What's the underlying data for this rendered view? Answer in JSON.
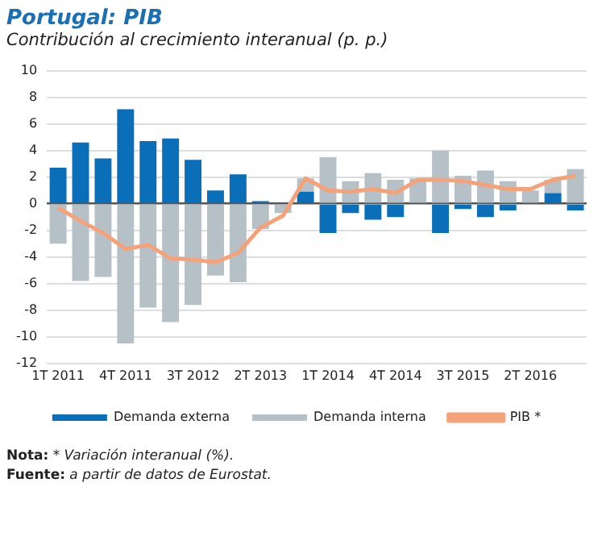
{
  "chart_data": {
    "type": "bar",
    "title": "Portugal: PIB",
    "subtitle": "Contribución al crecimiento interanual (p. p.)",
    "categories": [
      "1T 2011",
      null,
      null,
      "4T 2011",
      null,
      null,
      "3T 2012",
      null,
      null,
      "2T 2013",
      null,
      null,
      "1T 2014",
      null,
      null,
      "4T 2014",
      null,
      null,
      "3T 2015",
      null,
      null,
      "2T 2016",
      null,
      null
    ],
    "stacked": true,
    "series": [
      {
        "name": "Demanda externa",
        "color": "#0b6eb8",
        "values": [
          2.7,
          4.6,
          3.4,
          7.1,
          4.7,
          4.9,
          3.3,
          1.0,
          2.2,
          0.2,
          0.0,
          0.9,
          -2.2,
          -0.7,
          -1.2,
          -1.0,
          0.0,
          -2.2,
          -0.4,
          -1.0,
          -0.5,
          null,
          0.8,
          -0.5
        ]
      },
      {
        "name": "Demanda interna",
        "color": "#b5c0c7",
        "values": [
          -3.0,
          -5.8,
          -5.5,
          -10.5,
          -7.8,
          -8.9,
          -7.6,
          -5.4,
          -5.9,
          -1.9,
          -0.7,
          1.0,
          3.5,
          1.7,
          2.3,
          1.8,
          1.9,
          4.0,
          2.1,
          2.5,
          1.7,
          1.0,
          1.0,
          2.6
        ]
      },
      {
        "name": "PIB *",
        "type": "line",
        "color": "#f4a27a",
        "values": [
          -0.3,
          -1.3,
          -2.2,
          -3.4,
          -3.1,
          -4.1,
          -4.2,
          -4.4,
          -3.7,
          -1.8,
          -0.9,
          1.9,
          1.0,
          0.9,
          1.1,
          0.8,
          1.8,
          1.8,
          1.7,
          1.4,
          1.1,
          1.1,
          1.8,
          2.1
        ]
      }
    ],
    "ylim": [
      -12,
      10
    ],
    "yticks": [
      -12,
      -10,
      -8,
      -6,
      -4,
      -2,
      0,
      2,
      4,
      6,
      8,
      10
    ],
    "grid": "y",
    "legend": "bottom",
    "marker": "none",
    "annotations": [
      "Nota: * Variación interanual (%).",
      "Fuente: a partir de datos de Eurostat."
    ]
  }
}
